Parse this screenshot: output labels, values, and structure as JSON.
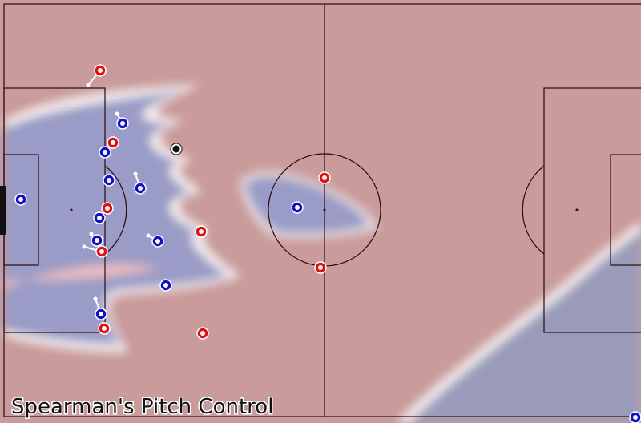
{
  "title": "Spearman's Pitch Control"
}
